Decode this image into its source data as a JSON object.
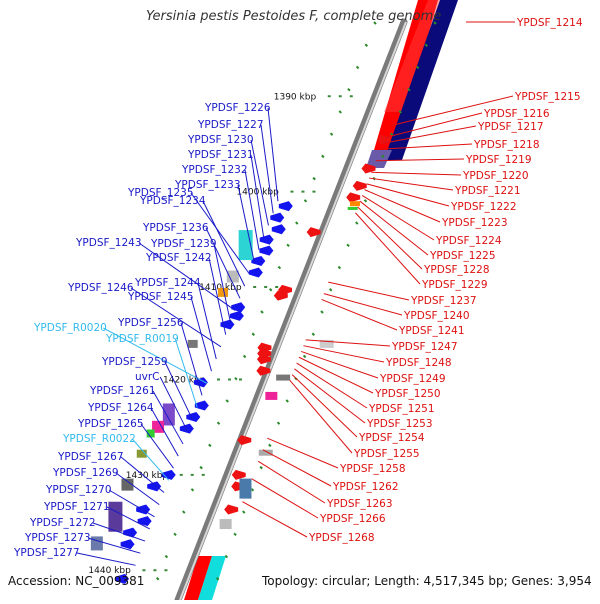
{
  "title": "Yersinia pestis Pestoides F, complete genome",
  "accession": "Accession: NC_009381",
  "topology": "Topology: circular; Length: 4,517,345 bp; Genes: 3,954",
  "colors": {
    "plus_label": "#1a1ac8",
    "minus_label": "#dd1111",
    "rna_label": "#33bbee",
    "plus_gene": "#1414ee",
    "minus_gene": "#ee1111",
    "backbone": "#888888",
    "tick": "#2a8a2a",
    "ring_red": "#ff0000",
    "ring_navy": "#0a0a7a"
  },
  "ticks": [
    {
      "label": "1390 kbp"
    },
    {
      "label": "1400 kbp"
    },
    {
      "label": "1410 kbp"
    },
    {
      "label": "1420 kbp"
    },
    {
      "label": "1430 kbp"
    },
    {
      "label": "1440 kbp"
    }
  ],
  "left_labels": [
    {
      "text": "YPDSF_1226",
      "kind": "gene"
    },
    {
      "text": "YPDSF_1227",
      "kind": "gene"
    },
    {
      "text": "YPDSF_1230",
      "kind": "gene"
    },
    {
      "text": "YPDSF_1231",
      "kind": "gene"
    },
    {
      "text": "YPDSF_1232",
      "kind": "gene"
    },
    {
      "text": "YPDSF_1233",
      "kind": "gene"
    },
    {
      "text": "YPDSF_1235",
      "kind": "gene"
    },
    {
      "text": "YPDSF_1234",
      "kind": "gene"
    },
    {
      "text": "YPDSF_1236",
      "kind": "gene"
    },
    {
      "text": "YPDSF_1243",
      "kind": "gene"
    },
    {
      "text": "YPDSF_1239",
      "kind": "gene"
    },
    {
      "text": "YPDSF_1242",
      "kind": "gene"
    },
    {
      "text": "YPDSF_1246",
      "kind": "gene"
    },
    {
      "text": "YPDSF_1244",
      "kind": "gene"
    },
    {
      "text": "YPDSF_1245",
      "kind": "gene"
    },
    {
      "text": "YPDSF_R0020",
      "kind": "rna"
    },
    {
      "text": "YPDSF_1256",
      "kind": "gene"
    },
    {
      "text": "YPDSF_R0019",
      "kind": "rna"
    },
    {
      "text": "YPDSF_1259",
      "kind": "gene"
    },
    {
      "text": "uvrC",
      "kind": "gene"
    },
    {
      "text": "YPDSF_1261",
      "kind": "gene"
    },
    {
      "text": "YPDSF_1264",
      "kind": "gene"
    },
    {
      "text": "YPDSF_1265",
      "kind": "gene"
    },
    {
      "text": "YPDSF_R0022",
      "kind": "rna"
    },
    {
      "text": "YPDSF_1267",
      "kind": "gene"
    },
    {
      "text": "YPDSF_1269",
      "kind": "gene"
    },
    {
      "text": "YPDSF_1270",
      "kind": "gene"
    },
    {
      "text": "YPDSF_1271",
      "kind": "gene"
    },
    {
      "text": "YPDSF_1272",
      "kind": "gene"
    },
    {
      "text": "YPDSF_1273",
      "kind": "gene"
    },
    {
      "text": "YPDSF_1277",
      "kind": "gene"
    }
  ],
  "right_labels": [
    {
      "text": "YPDSF_1214"
    },
    {
      "text": "YPDSF_1215"
    },
    {
      "text": "YPDSF_1216"
    },
    {
      "text": "YPDSF_1217"
    },
    {
      "text": "YPDSF_1218"
    },
    {
      "text": "YPDSF_1219"
    },
    {
      "text": "YPDSF_1220"
    },
    {
      "text": "YPDSF_1221"
    },
    {
      "text": "YPDSF_1222"
    },
    {
      "text": "YPDSF_1223"
    },
    {
      "text": "YPDSF_1224"
    },
    {
      "text": "YPDSF_1225"
    },
    {
      "text": "YPDSF_1228"
    },
    {
      "text": "YPDSF_1229"
    },
    {
      "text": "YPDSF_1237"
    },
    {
      "text": "YPDSF_1240"
    },
    {
      "text": "YPDSF_1241"
    },
    {
      "text": "YPDSF_1247"
    },
    {
      "text": "YPDSF_1248"
    },
    {
      "text": "YPDSF_1249"
    },
    {
      "text": "YPDSF_1250"
    },
    {
      "text": "YPDSF_1251"
    },
    {
      "text": "YPDSF_1253"
    },
    {
      "text": "YPDSF_1254"
    },
    {
      "text": "YPDSF_1255"
    },
    {
      "text": "YPDSF_1258"
    },
    {
      "text": "YPDSF_1262"
    },
    {
      "text": "YPDSF_1263"
    },
    {
      "text": "YPDSF_1266"
    },
    {
      "text": "YPDSF_1268"
    }
  ]
}
